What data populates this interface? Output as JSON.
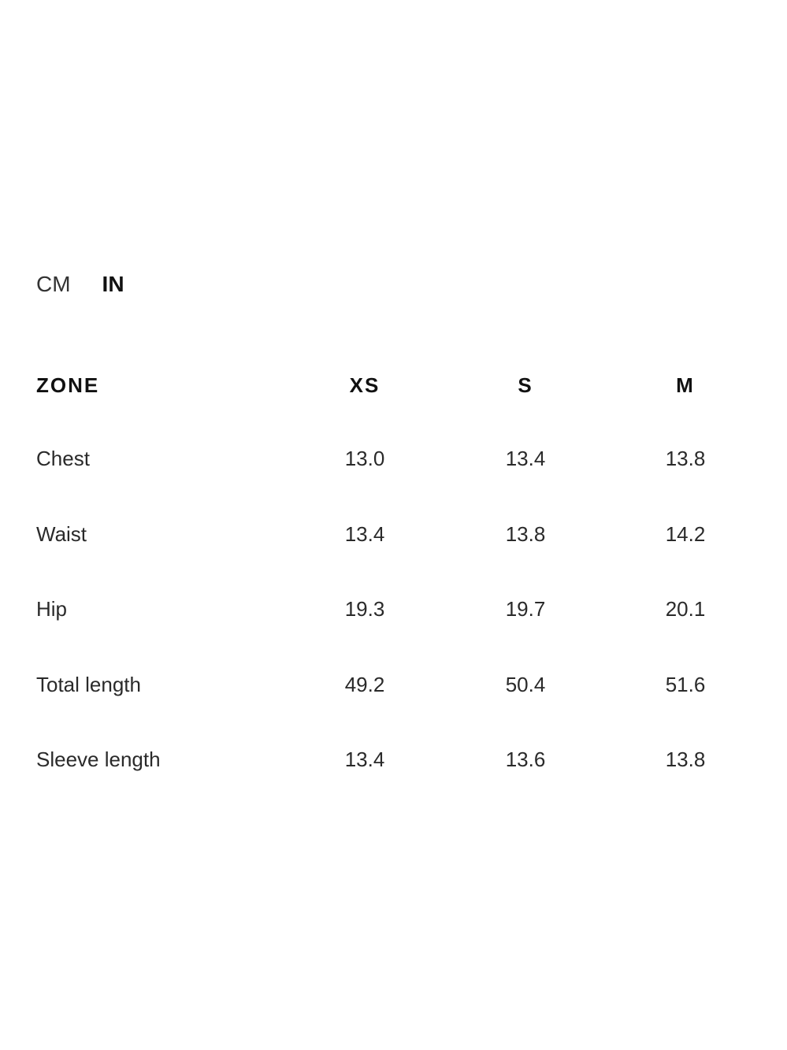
{
  "units": {
    "options": [
      "CM",
      "IN"
    ],
    "selected": "IN"
  },
  "table": {
    "headers": [
      "ZONE",
      "XS",
      "S",
      "M"
    ],
    "rows": [
      [
        "Chest",
        "13.0",
        "13.4",
        "13.8"
      ],
      [
        "Waist",
        "13.4",
        "13.8",
        "14.2"
      ],
      [
        "Hip",
        "19.3",
        "19.7",
        "20.1"
      ],
      [
        "Total length",
        "49.2",
        "50.4",
        "51.6"
      ],
      [
        "Sleeve length",
        "13.4",
        "13.6",
        "13.8"
      ]
    ]
  }
}
